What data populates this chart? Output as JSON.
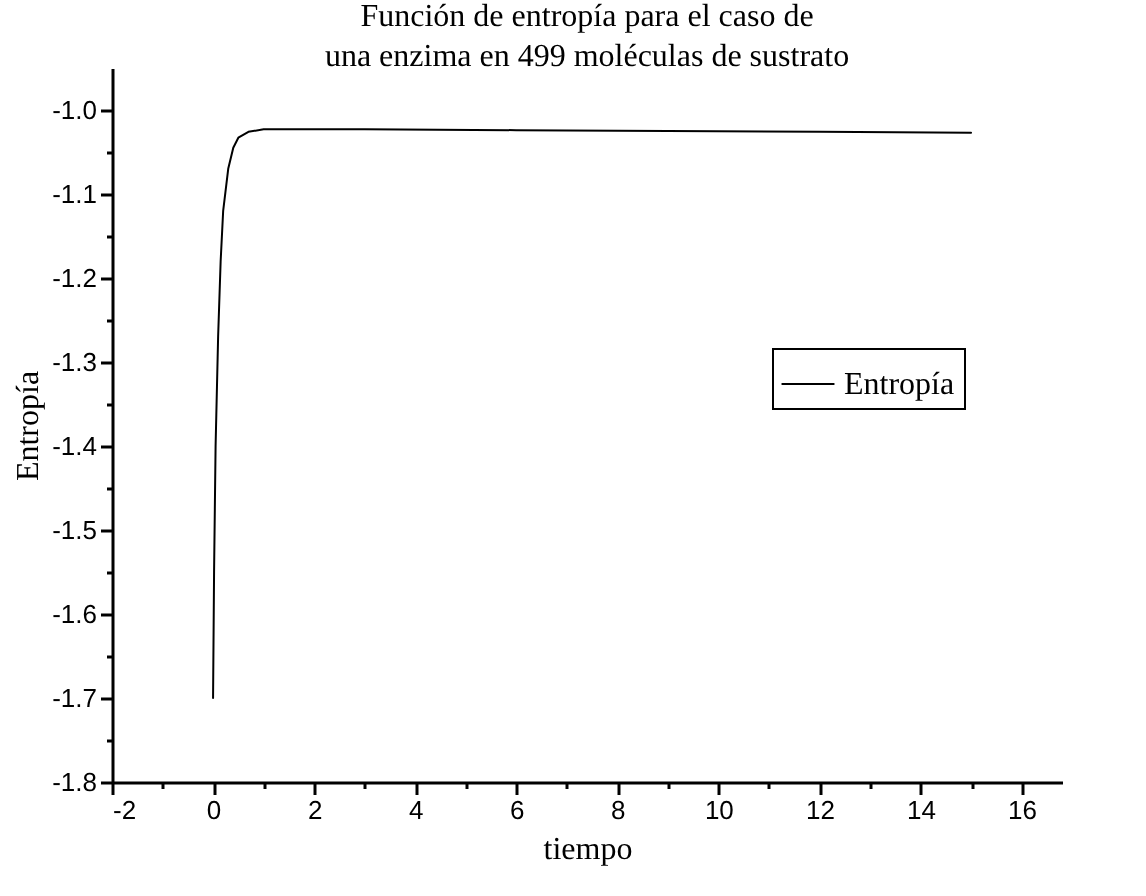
{
  "chart_data": {
    "type": "line",
    "title": "Función de entropía para el caso de\nuna enzima en 499 moléculas de sustrato",
    "xlabel": "tiempo",
    "ylabel": "Entropía",
    "x": [
      0,
      0.02,
      0.05,
      0.1,
      0.15,
      0.2,
      0.3,
      0.4,
      0.5,
      0.7,
      1,
      3,
      6,
      9,
      12,
      15
    ],
    "series": [
      {
        "name": "Entropía",
        "color": "#000000",
        "values": [
          -1.7,
          -1.55,
          -1.4,
          -1.27,
          -1.18,
          -1.12,
          -1.07,
          -1.045,
          -1.033,
          -1.026,
          -1.023,
          -1.023,
          -1.024,
          -1.025,
          -1.026,
          -1.027
        ]
      }
    ],
    "xlim": [
      -2,
      16.8
    ],
    "xticks": [
      -2,
      {
        "value": -1,
        "label": null
      },
      0,
      {
        "value": 1,
        "label": null
      },
      2,
      {
        "value": 3,
        "label": null
      },
      4,
      {
        "value": 5,
        "label": null
      },
      6,
      {
        "value": 7,
        "label": null
      },
      8,
      {
        "value": 9,
        "label": null
      },
      10,
      {
        "value": 11,
        "label": null
      },
      12,
      {
        "value": 13,
        "label": null
      },
      14,
      {
        "value": 15,
        "label": null
      },
      16
    ],
    "ylim": [
      -1.8,
      -0.95
    ],
    "yticks": [
      -1.8,
      {
        "value": -1.75,
        "label": null
      },
      -1.7,
      {
        "value": -1.65,
        "label": null
      },
      -1.6,
      {
        "value": -1.55,
        "label": null
      },
      -1.5,
      {
        "value": -1.45,
        "label": null
      },
      -1.4,
      {
        "value": -1.35,
        "label": null
      },
      -1.3,
      {
        "value": -1.25,
        "label": null
      },
      -1.2,
      {
        "value": -1.15,
        "label": null
      },
      -1.1,
      {
        "value": -1.05,
        "label": null
      },
      {
        "value": -1.0,
        "label": "-1.0"
      }
    ],
    "grid": false,
    "legend": "right",
    "line_style": "solid",
    "marker": "none"
  }
}
